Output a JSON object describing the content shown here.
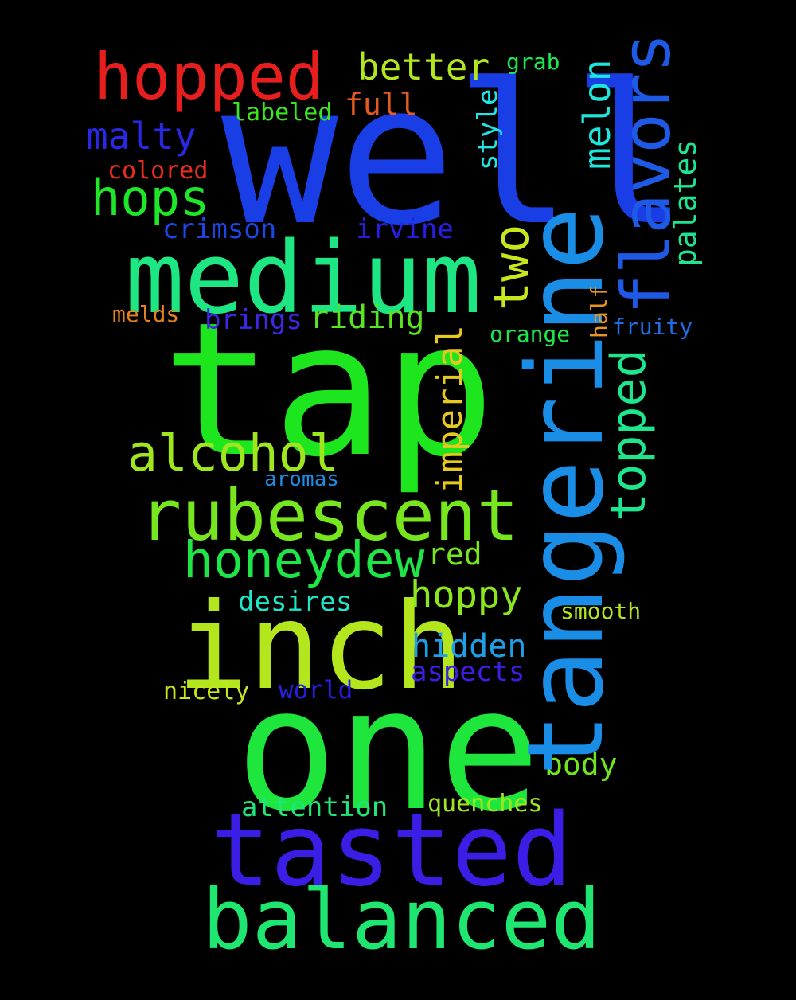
{
  "words": {
    "well": {
      "text": "well",
      "color": "#1a3ee6"
    },
    "tap": {
      "text": "tap",
      "color": "#1ee61e"
    },
    "one": {
      "text": "one",
      "color": "#1ee63c"
    },
    "tangerine": {
      "text": "tangerine",
      "color": "#1a8ee6"
    },
    "medium": {
      "text": "medium",
      "color": "#1ee682"
    },
    "inch": {
      "text": "inch",
      "color": "#b4e61e"
    },
    "tasted": {
      "text": "tasted",
      "color": "#3a1ee6"
    },
    "balanced": {
      "text": "balanced",
      "color": "#1ee670"
    },
    "rubescent": {
      "text": "rubescent",
      "color": "#78e61e"
    },
    "hopped": {
      "text": "hopped",
      "color": "#e61e1e"
    },
    "flavors": {
      "text": "flavors",
      "color": "#1e5ae6"
    },
    "honeydew": {
      "text": "honeydew",
      "color": "#1ee646"
    },
    "alcohol": {
      "text": "alcohol",
      "color": "#a0e61e"
    },
    "topped": {
      "text": "topped",
      "color": "#1ee68c"
    },
    "hops": {
      "text": "hops",
      "color": "#1ee628"
    },
    "two": {
      "text": "two",
      "color": "#c8e61e"
    },
    "imperial": {
      "text": "imperial",
      "color": "#e6c81e"
    },
    "better": {
      "text": "better",
      "color": "#b4e61e"
    },
    "malty": {
      "text": "malty",
      "color": "#2828e6"
    },
    "melon": {
      "text": "melon",
      "color": "#1ee6dc"
    },
    "hoppy": {
      "text": "hoppy",
      "color": "#8ce61e"
    },
    "hidden": {
      "text": "hidden",
      "color": "#1ea0e6"
    },
    "riding": {
      "text": "riding",
      "color": "#5ae61e"
    },
    "body": {
      "text": "body",
      "color": "#6ee61e"
    },
    "red": {
      "text": "red",
      "color": "#78e61e"
    },
    "aspects": {
      "text": "aspects",
      "color": "#3c1ee6"
    },
    "attention": {
      "text": "attention",
      "color": "#1ee678"
    },
    "desires": {
      "text": "desires",
      "color": "#1ee6c8"
    },
    "full": {
      "text": "full",
      "color": "#e65a1e"
    },
    "palates": {
      "text": "palates",
      "color": "#1ee690"
    },
    "crimson": {
      "text": "crimson",
      "color": "#1e46e6"
    },
    "irvine": {
      "text": "irvine",
      "color": "#281ee6"
    },
    "brings": {
      "text": "brings",
      "color": "#3c28e6"
    },
    "quenches": {
      "text": "quenches",
      "color": "#a0e61e"
    },
    "style": {
      "text": "style",
      "color": "#1ee6e6"
    },
    "labeled": {
      "text": "labeled",
      "color": "#3ce61e"
    },
    "nicely": {
      "text": "nicely",
      "color": "#c8e61e"
    },
    "world": {
      "text": "world",
      "color": "#281ee6"
    },
    "colored": {
      "text": "colored",
      "color": "#e62d1e"
    },
    "grab": {
      "text": "grab",
      "color": "#1ee650"
    },
    "smooth": {
      "text": "smooth",
      "color": "#b4e61e"
    },
    "fruity": {
      "text": "fruity",
      "color": "#1e6ee6"
    },
    "orange": {
      "text": "orange",
      "color": "#1ee64b"
    },
    "melds": {
      "text": "melds",
      "color": "#e6821e"
    },
    "aromas": {
      "text": "aromas",
      "color": "#1e8ce6"
    },
    "half": {
      "text": "half",
      "color": "#e6961e"
    }
  }
}
